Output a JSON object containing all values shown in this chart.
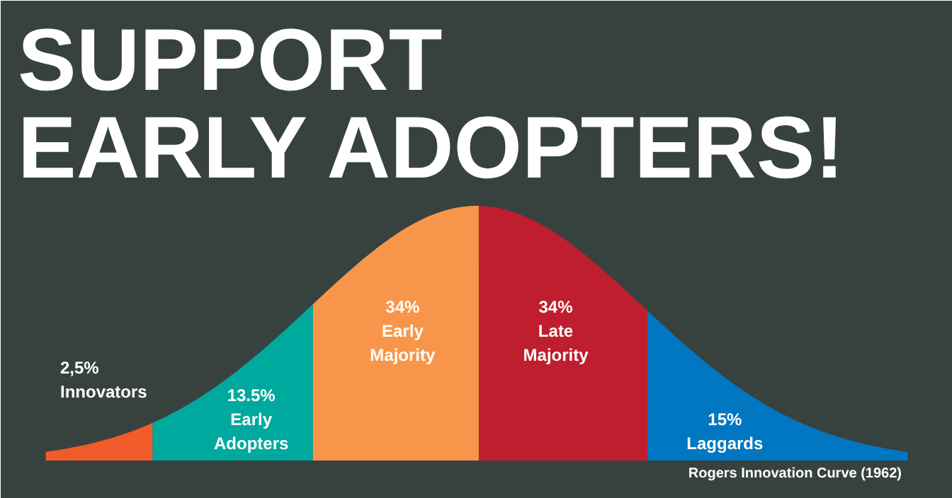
{
  "chart_data": {
    "type": "other",
    "title": "SUPPORT\nEARLY  ADOPTERS!",
    "categories": [
      "Innovators",
      "Early Adopters",
      "Early Majority",
      "Late Majority",
      "Laggards"
    ],
    "values": [
      2.5,
      13.5,
      34,
      34,
      15
    ],
    "value_labels": [
      "2,5%",
      "13.5%",
      "34%",
      "34%",
      "15%"
    ],
    "colors": [
      "#f15a29",
      "#00a99d",
      "#f7964a",
      "#be1e2d",
      "#0077c0"
    ],
    "annotations": [
      "Rogers Innovation Curve (1962)"
    ]
  }
}
